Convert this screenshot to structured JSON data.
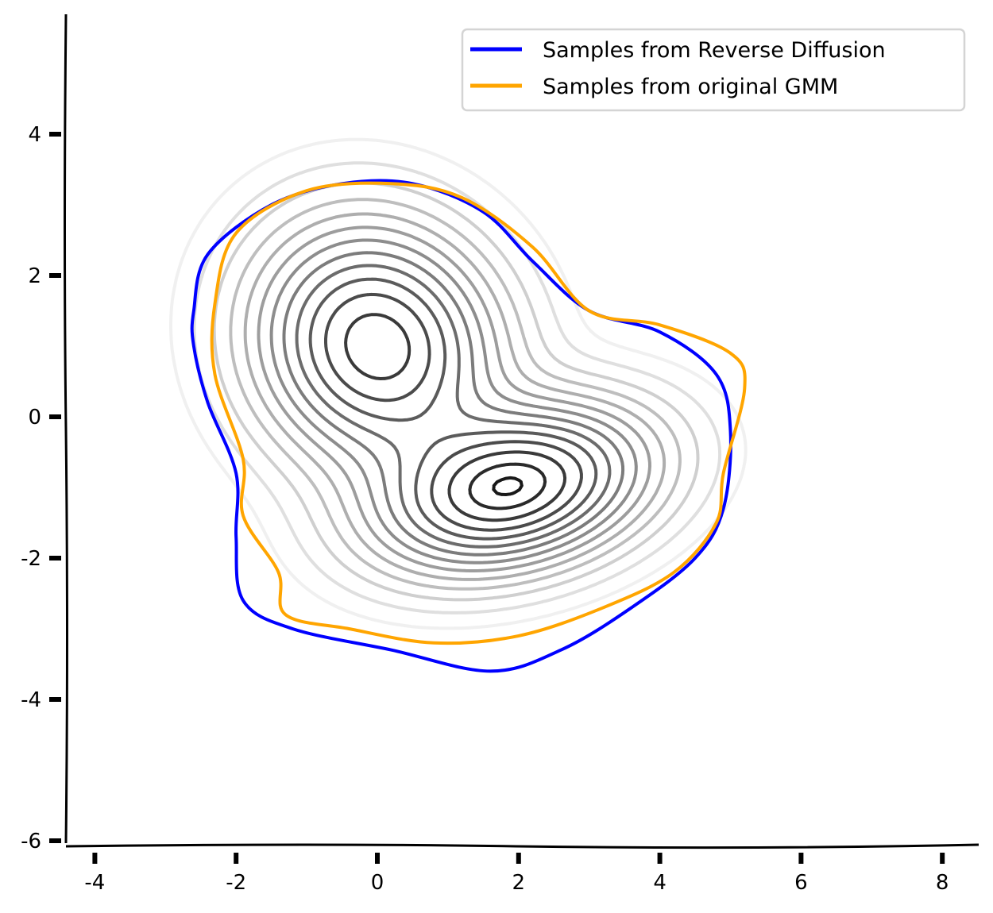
{
  "chart_data": {
    "type": "contour",
    "title": "",
    "xlabel": "",
    "ylabel": "",
    "xlim": [
      -4.4,
      8.5
    ],
    "ylim": [
      -6.05,
      5.8
    ],
    "x_ticks": [
      -4,
      -2,
      0,
      2,
      4,
      6,
      8
    ],
    "y_ticks": [
      -6,
      -4,
      -2,
      0,
      2,
      4
    ],
    "grid": false,
    "legend_position": "top-right",
    "series": [
      {
        "name": "Samples from Reverse Diffusion",
        "color": "#0000ff",
        "outer_contour": [
          [
            -2.6,
            1.5
          ],
          [
            -2.4,
            2.3
          ],
          [
            -1.5,
            3.0
          ],
          [
            -0.5,
            3.3
          ],
          [
            0.5,
            3.3
          ],
          [
            1.5,
            2.9
          ],
          [
            2.2,
            2.2
          ],
          [
            3.0,
            1.5
          ],
          [
            4.0,
            1.2
          ],
          [
            4.8,
            0.6
          ],
          [
            5.0,
            -0.2
          ],
          [
            4.9,
            -1.3
          ],
          [
            4.5,
            -2.0
          ],
          [
            3.6,
            -2.7
          ],
          [
            2.6,
            -3.3
          ],
          [
            1.6,
            -3.6
          ],
          [
            0.2,
            -3.3
          ],
          [
            -1.2,
            -3.0
          ],
          [
            -1.9,
            -2.6
          ],
          [
            -2.0,
            -1.7
          ],
          [
            -2.0,
            -0.8
          ],
          [
            -2.4,
            0.2
          ],
          [
            -2.6,
            1.0
          ]
        ]
      },
      {
        "name": "Samples from original GMM",
        "color": "#ffa500",
        "outer_contour": [
          [
            -2.3,
            1.6
          ],
          [
            -2.0,
            2.6
          ],
          [
            -1.0,
            3.2
          ],
          [
            0.2,
            3.3
          ],
          [
            1.2,
            3.1
          ],
          [
            2.2,
            2.4
          ],
          [
            3.0,
            1.5
          ],
          [
            4.0,
            1.3
          ],
          [
            5.0,
            0.9
          ],
          [
            5.2,
            0.4
          ],
          [
            4.9,
            -0.8
          ],
          [
            4.8,
            -1.5
          ],
          [
            4.2,
            -2.2
          ],
          [
            3.2,
            -2.7
          ],
          [
            2.0,
            -3.1
          ],
          [
            0.8,
            -3.2
          ],
          [
            -0.4,
            -3.0
          ],
          [
            -1.3,
            -2.8
          ],
          [
            -1.4,
            -2.2
          ],
          [
            -1.9,
            -1.4
          ],
          [
            -1.9,
            -0.6
          ],
          [
            -2.3,
            0.6
          ]
        ]
      }
    ],
    "density_components": [
      {
        "mean": [
          0.0,
          1.0
        ],
        "cov": [
          [
            1.0,
            -0.1
          ],
          [
            -0.1,
            1.0
          ]
        ],
        "weight": 0.55
      },
      {
        "mean": [
          1.9,
          -1.0
        ],
        "cov": [
          [
            1.25,
            0.2
          ],
          [
            0.2,
            0.45
          ]
        ],
        "weight": 0.45
      }
    ]
  },
  "legend": {
    "entries": [
      "Samples from Reverse Diffusion",
      "Samples from original GMM"
    ]
  }
}
